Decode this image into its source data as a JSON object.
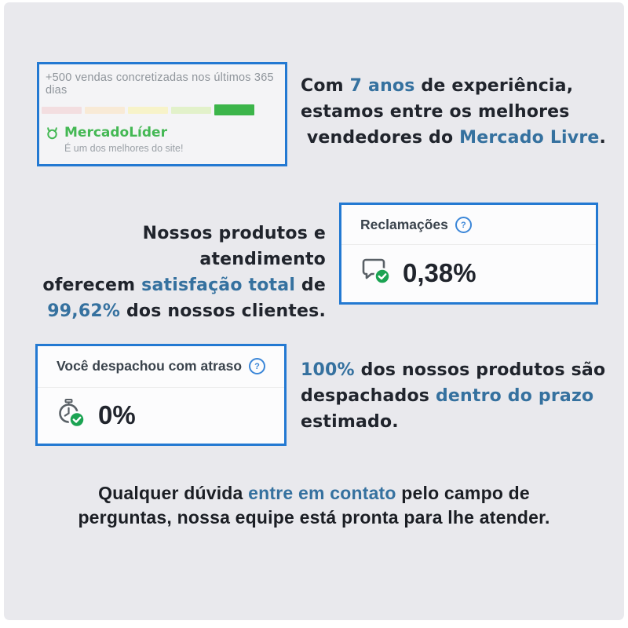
{
  "colors": {
    "background_panel": "#e9e9ed",
    "card_border_blue": "#2379d2",
    "accent_text_blue": "#35719f",
    "dark_text": "#20242c",
    "leader_green": "#44b854",
    "badge_green": "#1ba352",
    "muted_gray": "#8f959b"
  },
  "leader_card": {
    "title": "+500 vendas concretizadas nos últimos 365 dias",
    "bar_segments": [
      {
        "color": "#f3dee0",
        "active": false
      },
      {
        "color": "#f8ead6",
        "active": false
      },
      {
        "color": "#f7f3c9",
        "active": false
      },
      {
        "color": "#e2f1ca",
        "active": false
      },
      {
        "color": "#3cb54a",
        "active": true
      }
    ],
    "leader_label": "MercadoLíder",
    "leader_sub": "É um dos melhores do site!"
  },
  "experience_text": {
    "segments": [
      {
        "t": "Com "
      },
      {
        "t": "7 anos",
        "hl": true
      },
      {
        "t": " de experiência,\nestamos entre os melhores\n vendedores do "
      },
      {
        "t": "Mercado Livre",
        "hl": true
      },
      {
        "t": "."
      }
    ]
  },
  "satisfaction_text": {
    "segments": [
      {
        "t": "Nossos produtos e atendimento\noferecem "
      },
      {
        "t": "satisfação total",
        "hl": true
      },
      {
        "t": " de\n"
      },
      {
        "t": "99,62%",
        "hl": true
      },
      {
        "t": " dos nossos clientes."
      }
    ]
  },
  "claims_card": {
    "title": "Reclamações",
    "help_glyph": "?",
    "value": "0,38%"
  },
  "dispatch_card": {
    "title": "Você despachou com atraso",
    "help_glyph": "?",
    "value": "0%"
  },
  "dispatch_text": {
    "segments": [
      {
        "t": "100%",
        "hl": true
      },
      {
        "t": " dos nossos produtos são\ndespachados "
      },
      {
        "t": "dentro do prazo",
        "hl": true
      },
      {
        "t": "\nestimado."
      }
    ]
  },
  "contact_text": {
    "segments": [
      {
        "t": "Qualquer dúvida "
      },
      {
        "t": "entre em contato",
        "hl": true
      },
      {
        "t": " pelo campo de\nperguntas, nossa equipe está pronta para lhe atender."
      }
    ]
  }
}
